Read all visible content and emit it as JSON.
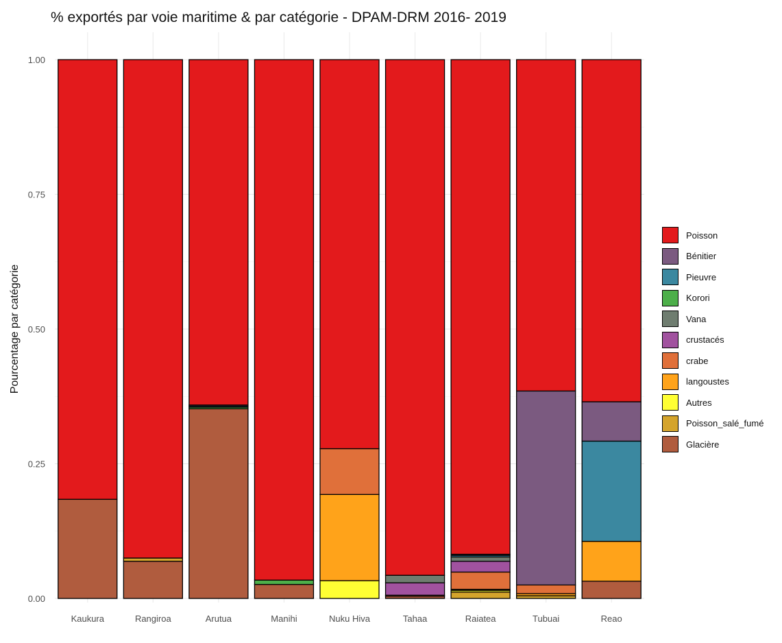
{
  "chart_data": {
    "type": "bar",
    "stacked": true,
    "title": "% exportés par voie maritime & par catégorie - DPAM-DRM 2016- 2019",
    "xlabel": "",
    "ylabel": "Pourcentage par catégorie",
    "ylim": [
      0,
      1
    ],
    "yticks": [
      "0.00",
      "0.25",
      "0.50",
      "0.75",
      "1.00"
    ],
    "grid": true,
    "legend_position": "right",
    "categories": [
      "Kaukura",
      "Rangiroa",
      "Arutua",
      "Manihi",
      "Nuku Hiva",
      "Tahaa",
      "Raiatea",
      "Tubuai",
      "Reao"
    ],
    "series": [
      {
        "name": "Glacière",
        "color": "#b05c3e",
        "values": [
          0.184,
          0.069,
          0.352,
          0.026,
          0.0,
          0.004,
          0.0,
          0.0,
          0.032
        ]
      },
      {
        "name": "Poisson_salé_fumé",
        "color": "#d4a42c",
        "values": [
          0.0,
          0.006,
          0.0,
          0.0,
          0.0,
          0.0,
          0.012,
          0.005,
          0.0
        ]
      },
      {
        "name": "Autres",
        "color": "#ffff33",
        "values": [
          0.0,
          0.0,
          0.0,
          0.0,
          0.033,
          0.0,
          0.003,
          0.0,
          0.0
        ]
      },
      {
        "name": "langoustes",
        "color": "#ffa31a",
        "values": [
          0.0,
          0.0,
          0.0,
          0.0,
          0.16,
          0.0,
          0.002,
          0.004,
          0.074
        ]
      },
      {
        "name": "crabe",
        "color": "#e0703a",
        "values": [
          0.0,
          0.0,
          0.0,
          0.0,
          0.085,
          0.002,
          0.032,
          0.016,
          0.0
        ]
      },
      {
        "name": "crustacés",
        "color": "#a1529f",
        "values": [
          0.0,
          0.0,
          0.0,
          0.0,
          0.0,
          0.023,
          0.02,
          0.0,
          0.0
        ]
      },
      {
        "name": "Vana",
        "color": "#6f7d70",
        "values": [
          0.0,
          0.0,
          0.0,
          0.0,
          0.0,
          0.014,
          0.008,
          0.0,
          0.0
        ]
      },
      {
        "name": "Korori",
        "color": "#4daf4a",
        "values": [
          0.0,
          0.0,
          0.003,
          0.008,
          0.0,
          0.0,
          0.0,
          0.0,
          0.0
        ]
      },
      {
        "name": "Pieuvre",
        "color": "#3b88a0",
        "values": [
          0.0,
          0.0,
          0.002,
          0.0,
          0.0,
          0.0,
          0.003,
          0.0,
          0.186
        ]
      },
      {
        "name": "Bénitier",
        "color": "#7b5a80",
        "values": [
          0.0,
          0.0,
          0.002,
          0.0,
          0.0,
          0.0,
          0.002,
          0.36,
          0.073
        ]
      },
      {
        "name": "Poisson",
        "color": "#e31a1c",
        "values": [
          0.816,
          0.925,
          0.641,
          0.966,
          0.722,
          0.957,
          0.918,
          0.615,
          0.635
        ]
      }
    ],
    "legend_order": [
      "Poisson",
      "Bénitier",
      "Pieuvre",
      "Korori",
      "Vana",
      "crustacés",
      "crabe",
      "langoustes",
      "Autres",
      "Poisson_salé_fumé",
      "Glacière"
    ]
  }
}
